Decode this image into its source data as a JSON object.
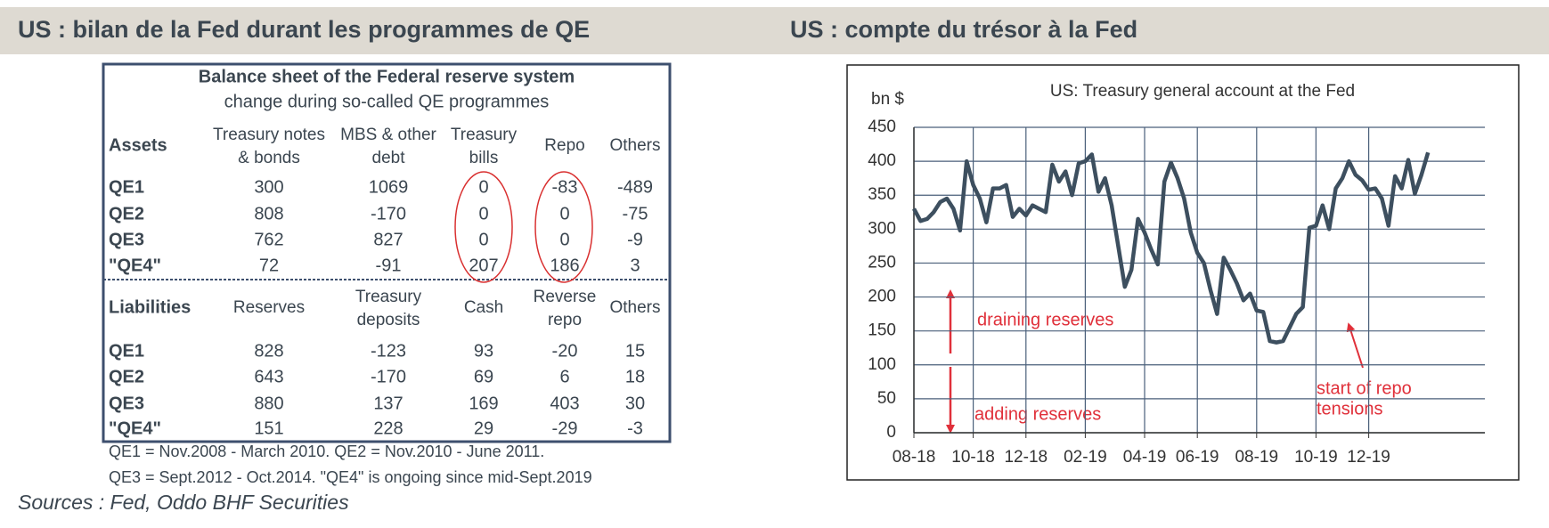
{
  "header": {
    "left": "US : bilan de la Fed durant les programmes de QE",
    "right": "US : compte du trésor à la Fed"
  },
  "table": {
    "title": "Balance sheet of the Federal reserve system",
    "subtitle": "change during so-called QE programmes",
    "assets": {
      "header": [
        "Assets",
        [
          "Treasury notes",
          "& bonds"
        ],
        [
          "MBS & other",
          "debt"
        ],
        [
          "Treasury",
          "bills"
        ],
        [
          "Repo"
        ],
        [
          "Others"
        ]
      ],
      "rows": [
        [
          "QE1",
          300,
          1069,
          0,
          -83,
          -489
        ],
        [
          "QE2",
          808,
          -170,
          0,
          0,
          -75
        ],
        [
          "QE3",
          762,
          827,
          0,
          0,
          -9
        ],
        [
          "\"QE4\"",
          72,
          -91,
          207,
          186,
          3
        ]
      ]
    },
    "liabilities": {
      "header": [
        "Liabilities",
        [
          "Reserves"
        ],
        [
          "Treasury",
          "deposits"
        ],
        [
          "Cash"
        ],
        [
          "Reverse",
          "repo"
        ],
        [
          "Others"
        ]
      ],
      "rows": [
        [
          "QE1",
          828,
          -123,
          93,
          -20,
          15
        ],
        [
          "QE2",
          643,
          -170,
          69,
          6,
          18
        ],
        [
          "QE3",
          880,
          137,
          169,
          403,
          30
        ],
        [
          "\"QE4\"",
          151,
          228,
          29,
          -29,
          -3
        ]
      ]
    },
    "notes": [
      "QE1 = Nov.2008 - March 2010. QE2 = Nov.2010 - June 2011.",
      "QE3 = Sept.2012 - Oct.2014. \"QE4\" is ongoing since mid-Sept.2019"
    ]
  },
  "source": "Sources : Fed, Oddo BHF Securities",
  "chart_data": {
    "type": "line",
    "title": "US: Treasury general account at the Fed",
    "ylabel": "bn $",
    "categories": [
      "08-18",
      null,
      null,
      null,
      null,
      null,
      null,
      null,
      null,
      "10-18",
      null,
      null,
      null,
      null,
      null,
      null,
      null,
      "12-18",
      null,
      null,
      null,
      null,
      null,
      null,
      null,
      null,
      "02-19",
      null,
      null,
      null,
      null,
      null,
      null,
      null,
      null,
      "04-19",
      null,
      null,
      null,
      null,
      null,
      null,
      null,
      "06-19",
      null,
      null,
      null,
      null,
      null,
      null,
      null,
      null,
      "08-19",
      null,
      null,
      null,
      null,
      null,
      null,
      null,
      null,
      "10-19",
      null,
      null,
      null,
      null,
      null,
      null,
      null,
      "12-19",
      null,
      null,
      null,
      null,
      null,
      null,
      null,
      null,
      null
    ],
    "series": [
      {
        "name": "Treasury general account",
        "color": "#3d4f5f",
        "values": [
          330,
          312,
          315,
          325,
          340,
          345,
          330,
          298,
          400,
          365,
          345,
          310,
          360,
          360,
          365,
          318,
          330,
          320,
          335,
          330,
          325,
          395,
          370,
          385,
          350,
          397,
          400,
          410,
          355,
          375,
          335,
          275,
          215,
          240,
          315,
          295,
          270,
          248,
          370,
          398,
          375,
          345,
          295,
          265,
          250,
          210,
          175,
          258,
          240,
          220,
          195,
          205,
          180,
          178,
          135,
          133,
          135,
          155,
          175,
          185,
          302,
          305,
          335,
          300,
          360,
          375,
          400,
          380,
          372,
          358,
          360,
          345,
          305,
          378,
          360,
          402,
          352,
          380,
          413
        ]
      }
    ],
    "ylim": [
      0,
      450
    ],
    "yticks": [
      0,
      50,
      100,
      150,
      200,
      250,
      300,
      350,
      400,
      450
    ],
    "grid": true,
    "annotations": [
      "draining reserves",
      "adding reserves",
      "start of repo",
      "tensions"
    ]
  }
}
